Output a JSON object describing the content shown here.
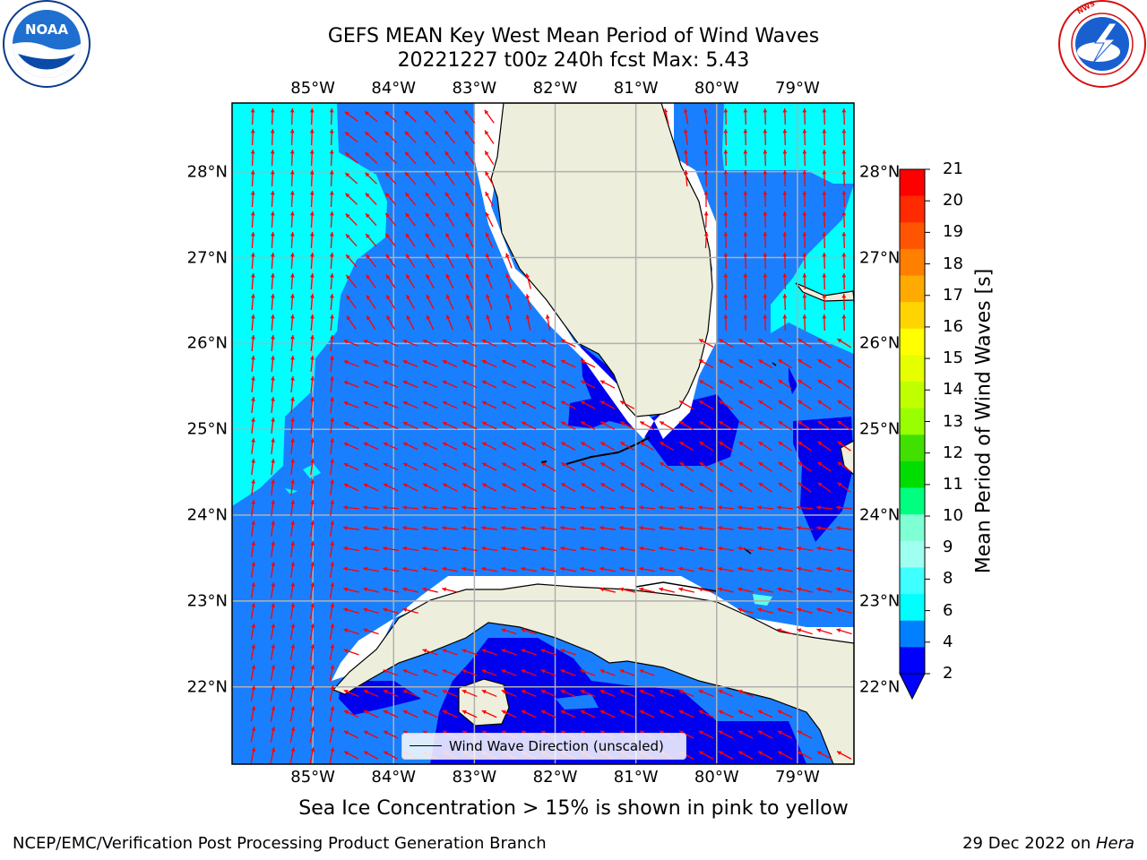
{
  "header": {
    "title_line1": "GEFS MEAN Key West Mean Period of Wind Waves",
    "title_line2": "20221227 t00z 240h fcst   Max: 5.43"
  },
  "logos": {
    "left": {
      "icon": "noaa-logo",
      "text": "NOAA",
      "ring_text": "NATIONAL OCEANIC AND ATMOSPHERIC ADMINISTRATION · U.S. DEPARTMENT OF COMMERCE"
    },
    "right": {
      "icon": "nws-logo",
      "ring_text": "NATIONAL WEATHER SERVICE"
    }
  },
  "axes": {
    "lon_labels": [
      "85°W",
      "84°W",
      "83°W",
      "82°W",
      "81°W",
      "80°W",
      "79°W"
    ],
    "lat_labels": [
      "28°N",
      "27°N",
      "26°N",
      "25°N",
      "24°N",
      "23°N",
      "22°N"
    ],
    "lon_range": [
      -86.0,
      -78.3
    ],
    "lat_range": [
      21.1,
      28.8
    ]
  },
  "colorbar": {
    "title": "Mean Period of Wind Waves [s]",
    "ticks": [
      "21",
      "20",
      "19",
      "18",
      "17",
      "16",
      "15",
      "14",
      "13",
      "12",
      "11",
      "10",
      "9",
      "8",
      "6",
      "4",
      "2"
    ],
    "colors": [
      "#ff0000",
      "#ff2a00",
      "#ff5500",
      "#ff7f00",
      "#ffaa00",
      "#ffd400",
      "#ffff00",
      "#e5ff00",
      "#bfff00",
      "#99ff00",
      "#40e000",
      "#00dd00",
      "#00ff7f",
      "#7fffd4",
      "#9ffff0",
      "#40ffff",
      "#00ffff",
      "#0080ff",
      "#0000ff"
    ]
  },
  "legend": {
    "label": "Wind Wave Direction (unscaled)"
  },
  "note": "Sea Ice Concentration > 15% is shown in pink to yellow",
  "footer": {
    "left": "NCEP/EMC/Verification Post Processing Product Generation Branch",
    "right_prefix": "29 Dec 2022 on ",
    "right_host": "Hera"
  },
  "colors": {
    "land": "#eeeedc",
    "cyan_band": "#00ffff",
    "blue_band": "#1a7fff",
    "deep_band": "#0000ee",
    "arrow": "#ff0000",
    "grid": "#b0b0b0"
  }
}
